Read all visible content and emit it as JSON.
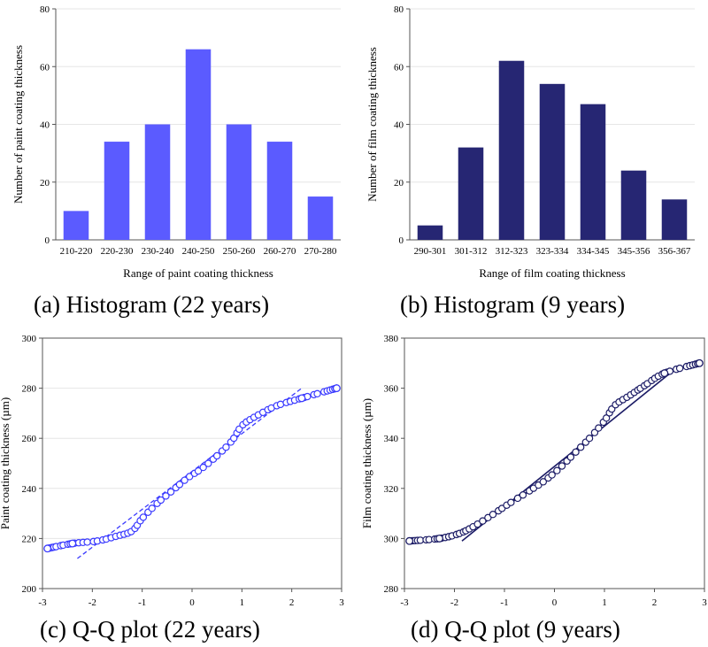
{
  "captions": {
    "a": "(a) Histogram (22 years)",
    "b": "(b) Histogram (9 years)",
    "c": "(c) Q-Q plot (22 years)",
    "d": "(d) Q-Q plot (9 years)"
  },
  "colors": {
    "hist_a": "#5b5bff",
    "hist_b": "#262673",
    "qq_c": "#3a3aff",
    "qq_d": "#1c1c66",
    "grid": "#e6e6e6",
    "axis": "#555555"
  },
  "chart_data": [
    {
      "type": "bar",
      "title": "",
      "xlabel": "Range of paint coating thickness",
      "ylabel": "Number of paint coating thickness",
      "categories": [
        "210-220",
        "220-230",
        "230-240",
        "240-250",
        "250-260",
        "260-270",
        "270-280"
      ],
      "values": [
        10,
        34,
        40,
        66,
        40,
        34,
        15
      ],
      "ylim": [
        0,
        80
      ],
      "yticks": [
        "0",
        "20",
        "40",
        "60",
        "80"
      ],
      "grid": true
    },
    {
      "type": "bar",
      "title": "",
      "xlabel": "Range of film coating thickness",
      "ylabel": "Number of film coating thickness",
      "categories": [
        "290-301",
        "301-312",
        "312-323",
        "323-334",
        "334-345",
        "345-356",
        "356-367"
      ],
      "values": [
        5,
        32,
        62,
        54,
        47,
        24,
        14
      ],
      "ylim": [
        0,
        80
      ],
      "yticks": [
        "0",
        "20",
        "40",
        "60",
        "80"
      ],
      "grid": true
    },
    {
      "type": "scatter",
      "title": "",
      "xlabel": "",
      "ylabel": "Paint coating thickness (µm)",
      "xlim": [
        -3,
        3
      ],
      "ylim": [
        200,
        300
      ],
      "xticks": [
        "-3",
        "-2",
        "-1",
        "0",
        "1",
        "2",
        "3"
      ],
      "yticks": [
        "200",
        "220",
        "240",
        "260",
        "280",
        "300"
      ],
      "curve_x": [
        -2.9,
        -2.4,
        -1.9,
        -1.5,
        -1.2,
        -1.0,
        -0.7,
        -0.4,
        -0.1,
        0.2,
        0.5,
        0.8,
        1.0,
        1.3,
        1.7,
        2.2,
        2.9
      ],
      "curve_y": [
        216,
        218,
        219,
        221,
        223,
        228,
        234,
        239,
        244,
        248,
        253,
        259,
        265,
        269,
        273,
        276,
        280
      ],
      "ref_line": {
        "x": [
          -2.3,
          2.2
        ],
        "y": [
          212,
          280
        ]
      },
      "grid": true
    },
    {
      "type": "scatter",
      "title": "",
      "xlabel": "",
      "ylabel": "Film coating thickness (µm)",
      "xlim": [
        -3,
        3
      ],
      "ylim": [
        280,
        380
      ],
      "xticks": [
        "-3",
        "-2",
        "-1",
        "0",
        "1",
        "2",
        "3"
      ],
      "yticks": [
        "280",
        "300",
        "320",
        "340",
        "360",
        "380"
      ],
      "curve_x": [
        -2.9,
        -2.3,
        -1.9,
        -1.6,
        -1.2,
        -0.9,
        -0.5,
        -0.2,
        0.1,
        0.4,
        0.7,
        1.0,
        1.2,
        1.5,
        1.8,
        2.2,
        2.9
      ],
      "curve_y": [
        299,
        300,
        302,
        305,
        310,
        314,
        319,
        323,
        328,
        334,
        340,
        347,
        353,
        357,
        361,
        366,
        370
      ],
      "ref_line": {
        "x": [
          -1.85,
          2.5
        ],
        "y": [
          299,
          369
        ]
      },
      "grid": false
    }
  ]
}
